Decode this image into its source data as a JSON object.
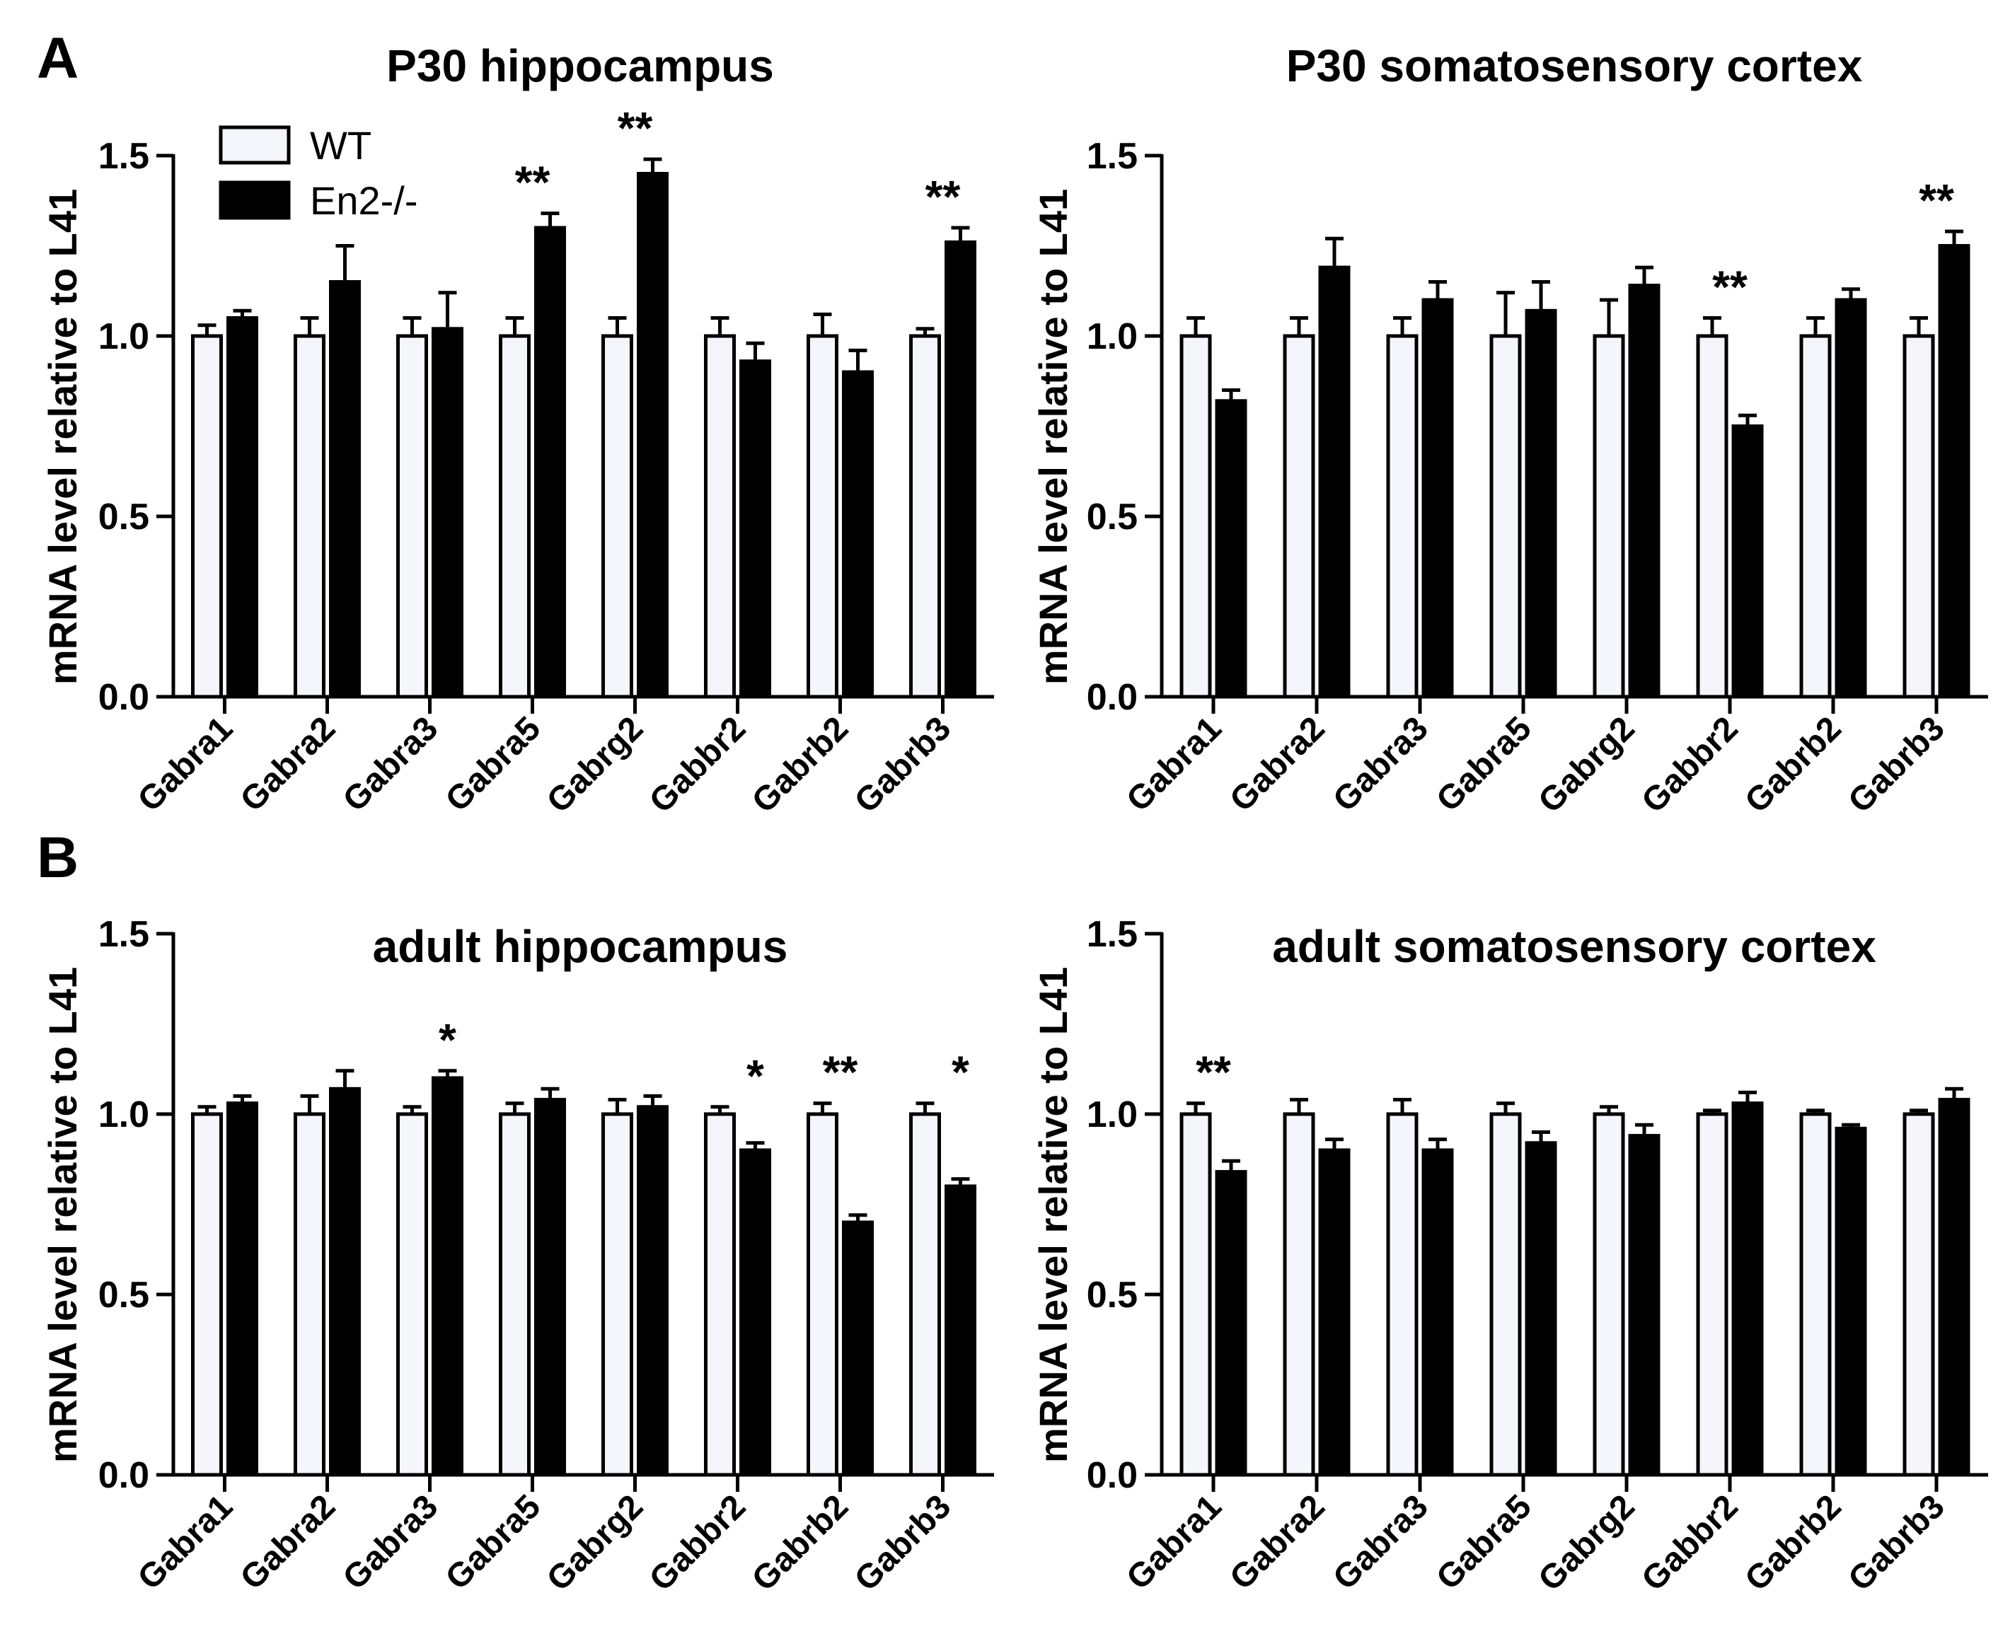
{
  "panel_labels": [
    "A",
    "B"
  ],
  "legend": {
    "wt": "WT",
    "ko": "En2-/-"
  },
  "colors": {
    "wt_fill": "#f5f5fc",
    "ko_fill": "#000000",
    "stroke": "#000000"
  },
  "chart_data": [
    {
      "type": "bar",
      "title": "P30 hippocampus",
      "xlabel": "",
      "ylabel": "mRNA level relative to L41",
      "ylim": [
        0,
        1.5
      ],
      "yticks": [
        "0.0",
        "0.5",
        "1.0",
        "1.5"
      ],
      "categories": [
        "Gabra1",
        "Gabra2",
        "Gabra3",
        "Gabra5",
        "Gabrg2",
        "Gabbr2",
        "Gabrb2",
        "Gabrb3"
      ],
      "series": [
        {
          "name": "WT",
          "values": [
            1.0,
            1.0,
            1.0,
            1.0,
            1.0,
            1.0,
            1.0,
            1.0
          ],
          "errors": [
            0.03,
            0.05,
            0.05,
            0.05,
            0.05,
            0.05,
            0.06,
            0.02
          ]
        },
        {
          "name": "En2-/-",
          "values": [
            1.05,
            1.15,
            1.02,
            1.3,
            1.45,
            0.93,
            0.9,
            1.26
          ],
          "errors": [
            0.02,
            0.1,
            0.1,
            0.04,
            0.04,
            0.05,
            0.06,
            0.04
          ]
        }
      ],
      "significance": [
        "",
        "",
        "",
        "**",
        "**",
        "",
        "",
        "**"
      ]
    },
    {
      "type": "bar",
      "title": "P30 somatosensory cortex",
      "xlabel": "",
      "ylabel": "mRNA level relative to L41",
      "ylim": [
        0,
        1.5
      ],
      "yticks": [
        "0.0",
        "0.5",
        "1.0",
        "1.5"
      ],
      "categories": [
        "Gabra1",
        "Gabra2",
        "Gabra3",
        "Gabra5",
        "Gabrg2",
        "Gabbr2",
        "Gabrb2",
        "Gabrb3"
      ],
      "series": [
        {
          "name": "WT",
          "values": [
            1.0,
            1.0,
            1.0,
            1.0,
            1.0,
            1.0,
            1.0,
            1.0
          ],
          "errors": [
            0.05,
            0.05,
            0.05,
            0.12,
            0.1,
            0.05,
            0.05,
            0.05
          ]
        },
        {
          "name": "En2-/-",
          "values": [
            0.82,
            1.19,
            1.1,
            1.07,
            1.14,
            0.75,
            1.1,
            1.25
          ],
          "errors": [
            0.03,
            0.08,
            0.05,
            0.08,
            0.05,
            0.03,
            0.03,
            0.04
          ]
        }
      ],
      "significance": [
        "",
        "",
        "",
        "",
        "",
        "**",
        "",
        "**"
      ]
    },
    {
      "type": "bar",
      "title": "adult hippocampus",
      "xlabel": "",
      "ylabel": "mRNA level relative to L41",
      "ylim": [
        0,
        1.5
      ],
      "yticks": [
        "0.0",
        "0.5",
        "1.0",
        "1.5"
      ],
      "categories": [
        "Gabra1",
        "Gabra2",
        "Gabra3",
        "Gabra5",
        "Gabrg2",
        "Gabbr2",
        "Gabrb2",
        "Gabrb3"
      ],
      "series": [
        {
          "name": "WT",
          "values": [
            1.0,
            1.0,
            1.0,
            1.0,
            1.0,
            1.0,
            1.0,
            1.0
          ],
          "errors": [
            0.02,
            0.05,
            0.02,
            0.03,
            0.04,
            0.02,
            0.03,
            0.03
          ]
        },
        {
          "name": "En2-/-",
          "values": [
            1.03,
            1.07,
            1.1,
            1.04,
            1.02,
            0.9,
            0.7,
            0.8
          ],
          "errors": [
            0.02,
            0.05,
            0.02,
            0.03,
            0.03,
            0.02,
            0.02,
            0.02
          ]
        }
      ],
      "significance": [
        "",
        "",
        "*",
        "",
        "",
        "*",
        "**",
        "*"
      ]
    },
    {
      "type": "bar",
      "title": "adult somatosensory cortex",
      "xlabel": "",
      "ylabel": "mRNA level relative to L41",
      "ylim": [
        0,
        1.5
      ],
      "yticks": [
        "0.0",
        "0.5",
        "1.0",
        "1.5"
      ],
      "categories": [
        "Gabra1",
        "Gabra2",
        "Gabra3",
        "Gabra5",
        "Gabrg2",
        "Gabbr2",
        "Gabrb2",
        "Gabrb3"
      ],
      "series": [
        {
          "name": "WT",
          "values": [
            1.0,
            1.0,
            1.0,
            1.0,
            1.0,
            1.0,
            1.0,
            1.0
          ],
          "errors": [
            0.03,
            0.04,
            0.04,
            0.03,
            0.02,
            0.01,
            0.01,
            0.01
          ]
        },
        {
          "name": "En2-/-",
          "values": [
            0.84,
            0.9,
            0.9,
            0.92,
            0.94,
            1.03,
            0.96,
            1.04
          ],
          "errors": [
            0.03,
            0.03,
            0.03,
            0.03,
            0.03,
            0.03,
            0.01,
            0.03
          ]
        }
      ],
      "significance": [
        "**",
        "",
        "",
        "",
        "",
        "",
        "",
        ""
      ]
    }
  ]
}
